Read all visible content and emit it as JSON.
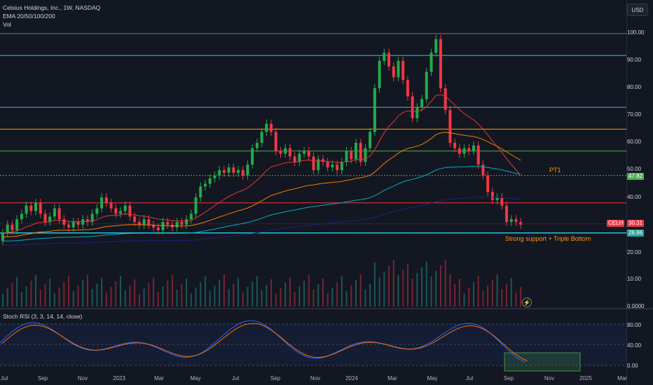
{
  "header": {
    "symbol_title": "Celsius Holdings, Inc., 1W, NASDAQ",
    "indicator_ema": "EMA 20/50/100/200",
    "indicator_vol": "Vol",
    "currency_button": "USD"
  },
  "price_axis": {
    "ticks": [
      "100.00",
      "90.00",
      "80.00",
      "70.00",
      "60.00",
      "50.00",
      "40.00",
      "20.00",
      "10.00",
      "0.0000"
    ],
    "level_tag_pt1": "47.82",
    "current_symbol_tag": "CELH",
    "current_price_tag": "30.31",
    "support_tag": "26.96"
  },
  "annotations": {
    "pt1_label": "PT1",
    "support_label": "Strong support + Triple Bottom"
  },
  "rsi_pane": {
    "title": "Stoch RSI (3, 3, 14, 14, close)",
    "ticks": [
      "80.00",
      "40.00",
      "0.00"
    ]
  },
  "time_axis": {
    "labels": [
      "Jul",
      "Sep",
      "Nov",
      "2023",
      "Mar",
      "May",
      "Jul",
      "Sep",
      "Nov",
      "2024",
      "Mar",
      "May",
      "Jul",
      "Sep",
      "Nov",
      "2025",
      "Mar"
    ]
  },
  "colors": {
    "background": "#131722",
    "up_candle": "#26a69a",
    "up_candle_bright": "#22ab4a",
    "down_candle": "#f23645",
    "resistance_teal": "#26c6da",
    "level_orange": "#ff9800",
    "level_green": "#4caf50",
    "level_red": "#f23645",
    "ema20": "#e53935",
    "ema50": "#f57c00",
    "ema100": "#00acc1",
    "ema200": "#1a237e",
    "stoch_k": "#2962ff",
    "stoch_d": "#ff6d00"
  }
}
